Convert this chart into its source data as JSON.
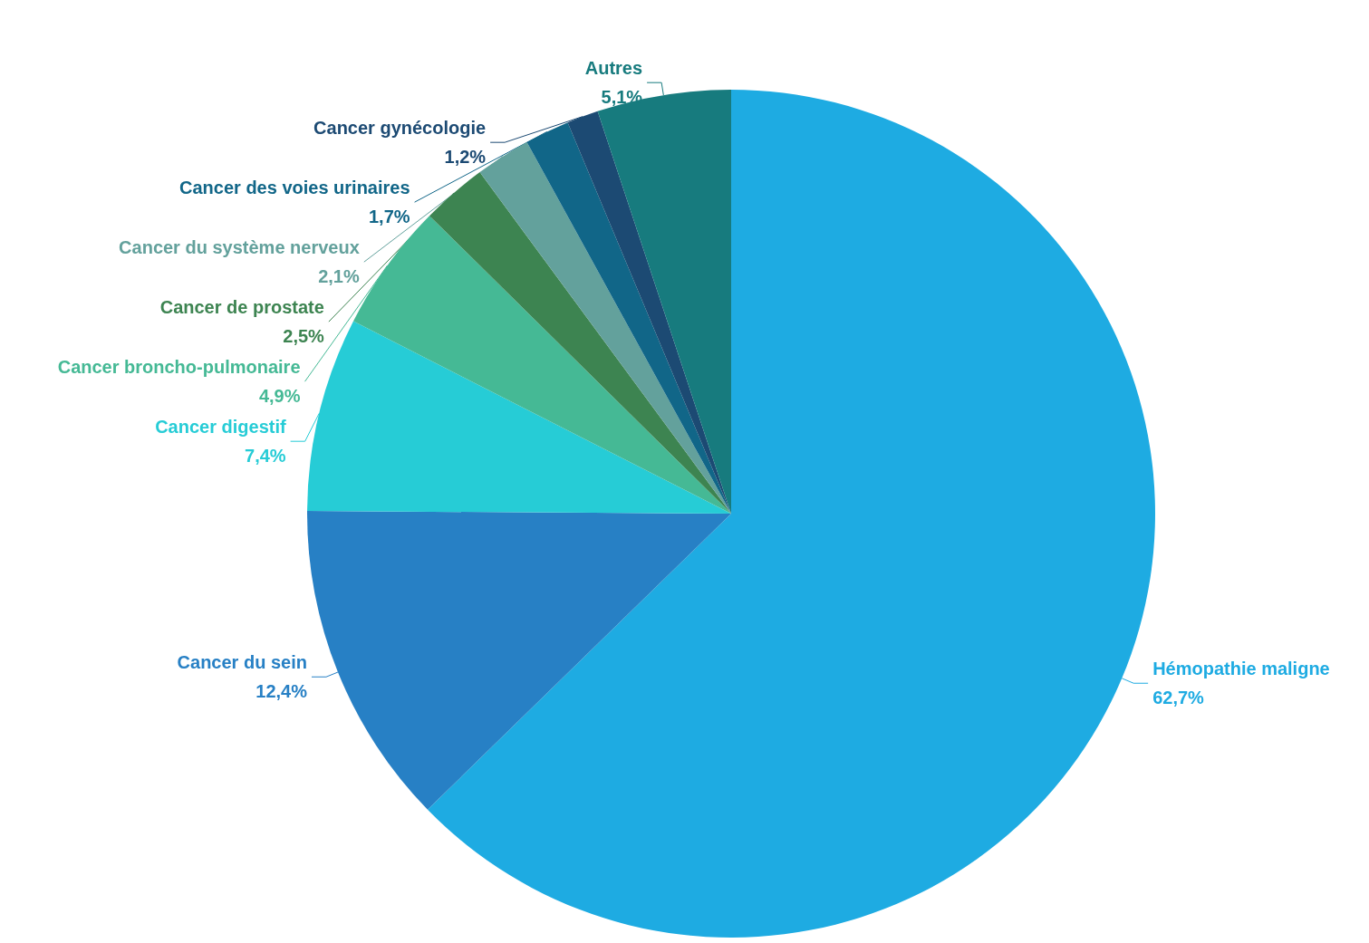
{
  "chart_data": {
    "type": "pie",
    "categories": [
      "Hémopathie maligne",
      "Cancer du sein",
      "Cancer digestif",
      "Cancer broncho-pulmonaire",
      "Cancer de prostate",
      "Cancer du système nerveux",
      "Cancer des voies urinaires",
      "Cancer gynécologie",
      "Autres"
    ],
    "values": [
      62.7,
      12.4,
      7.4,
      4.9,
      2.5,
      2.1,
      1.7,
      1.2,
      5.1
    ],
    "value_labels": [
      "62,7%",
      "12,4%",
      "7,4%",
      "4,9%",
      "2,5%",
      "2,1%",
      "1,7%",
      "1,2%",
      "5,1%"
    ],
    "colors": [
      "#1eabe2",
      "#2780c5",
      "#26ccd6",
      "#45b995",
      "#3d8451",
      "#63a19c",
      "#116688",
      "#1c4a73",
      "#177b7e"
    ],
    "legend": false
  }
}
